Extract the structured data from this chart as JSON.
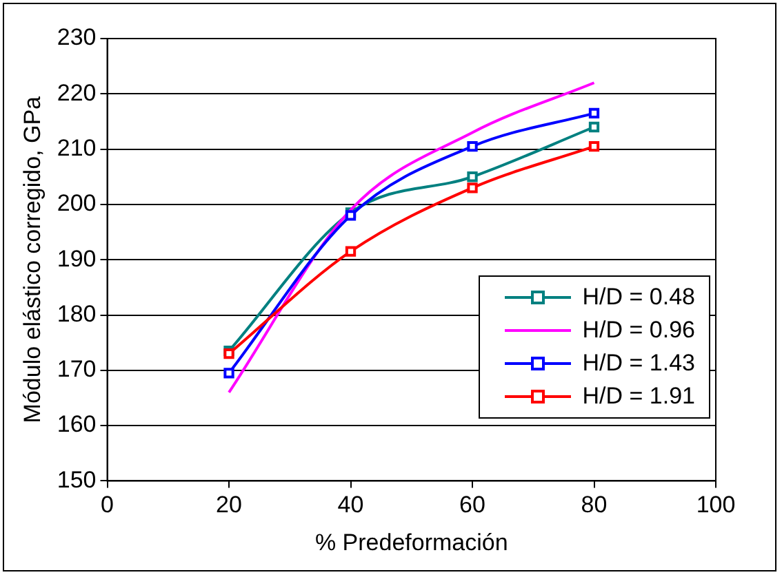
{
  "chart_data": {
    "type": "line",
    "xlabel": "% Predeformación",
    "ylabel": "Módulo elástico corregido, GPa",
    "x": [
      20,
      40,
      60,
      80
    ],
    "series": [
      {
        "name": "H/D = 0.48",
        "color": "#008080",
        "values": [
          173.5,
          198.5,
          205,
          214
        ],
        "marker": "square"
      },
      {
        "name": "H/D = 0.96",
        "color": "#ff00ff",
        "values": [
          166,
          199,
          213,
          222
        ],
        "marker": "none"
      },
      {
        "name": "H/D = 1.43",
        "color": "#0000ff",
        "values": [
          169.5,
          198,
          210.5,
          216.5
        ],
        "marker": "square"
      },
      {
        "name": "H/D = 1.91",
        "color": "#ff0000",
        "values": [
          173,
          191.5,
          203,
          210.5
        ],
        "marker": "square"
      }
    ],
    "xlim": [
      0,
      100
    ],
    "xticks": [
      0,
      20,
      40,
      60,
      80,
      100
    ],
    "ylim": [
      150,
      230
    ],
    "yticks": [
      150,
      160,
      170,
      180,
      190,
      200,
      210,
      220,
      230
    ],
    "grid": "y",
    "legend": "bottom right",
    "line_style": "solid"
  }
}
